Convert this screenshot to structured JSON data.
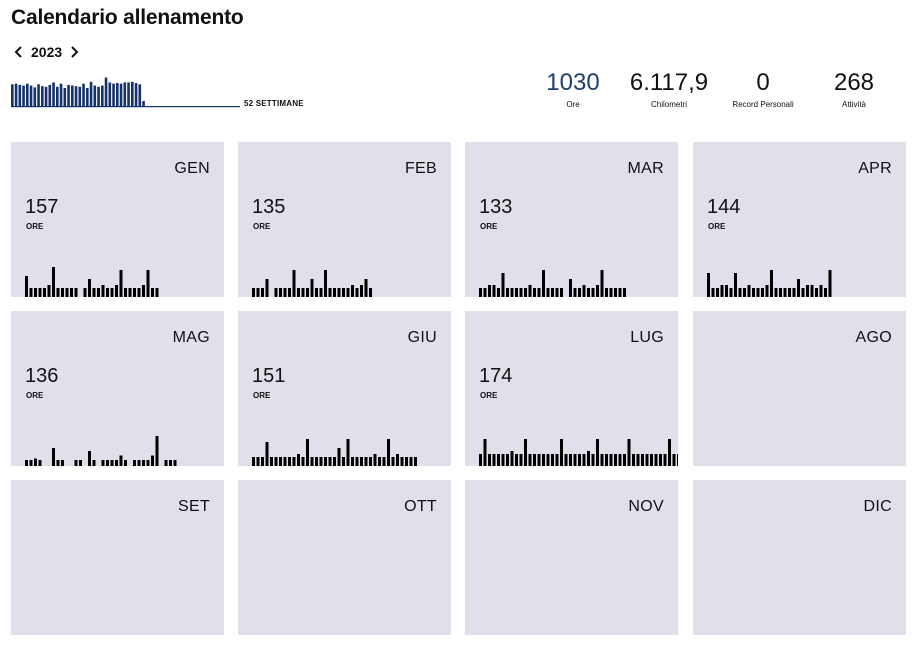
{
  "header": {
    "title": "Calendario allenamento",
    "year": "2023",
    "weeks_label": "52 SETTIMANE"
  },
  "icons": {
    "prev": "chevron-left-icon",
    "next": "chevron-right-icon"
  },
  "colors": {
    "accent": "#1e3f6e",
    "weekly_bar": "#15316a",
    "card_bg": "#e0e0ea",
    "bar": "#000000"
  },
  "weekly_bars": [
    0.7,
    0.72,
    0.68,
    0.66,
    0.72,
    0.66,
    0.6,
    0.7,
    0.64,
    0.62,
    0.68,
    0.76,
    0.62,
    0.72,
    0.58,
    0.68,
    0.66,
    0.64,
    0.62,
    0.72,
    0.58,
    0.78,
    0.66,
    0.62,
    0.66,
    0.92,
    0.76,
    0.72,
    0.74,
    0.72,
    0.76,
    0.76,
    0.78,
    0.74,
    0.7,
    0.16
  ],
  "stats": {
    "hours": {
      "value": "1030",
      "label": "Ore"
    },
    "km": {
      "value": "6.117,9",
      "label": "Chilometri"
    },
    "records": {
      "value": "0",
      "label": "Record Personali"
    },
    "activities": {
      "value": "268",
      "label": "Attività"
    }
  },
  "hours_unit": "ORE",
  "months": [
    {
      "name": "GEN",
      "hours": "157",
      "days": [
        0.7,
        0.3,
        0.3,
        0.3,
        0.3,
        0.4,
        1.0,
        0.3,
        0.3,
        0.3,
        0.3,
        0.3,
        0,
        0.3,
        0.6,
        0.3,
        0.3,
        0.4,
        0.3,
        0.3,
        0.4,
        0.9,
        0.3,
        0.3,
        0.3,
        0.3,
        0.4,
        0.9,
        0.3,
        0.3,
        0,
        0,
        0,
        0,
        0,
        0,
        0,
        0,
        0,
        0,
        0
      ]
    },
    {
      "name": "FEB",
      "hours": "135",
      "days": [
        0.3,
        0.3,
        0.3,
        0.6,
        0,
        0.3,
        0.3,
        0.3,
        0.3,
        0.9,
        0.3,
        0.3,
        0.3,
        0.6,
        0.3,
        0.3,
        0.9,
        0.3,
        0.3,
        0.3,
        0.3,
        0.3,
        0.4,
        0.3,
        0.4,
        0.6,
        0.3
      ]
    },
    {
      "name": "MAR",
      "hours": "133",
      "days": [
        0.3,
        0.3,
        0.4,
        0.4,
        0.3,
        0.8,
        0.3,
        0.3,
        0.3,
        0.3,
        0.3,
        0.4,
        0.3,
        0.3,
        0.9,
        0.3,
        0.3,
        0.3,
        0.3,
        0,
        0.6,
        0.3,
        0.3,
        0.4,
        0.3,
        0.3,
        0.4,
        0.9,
        0.3,
        0.3,
        0.3,
        0.3,
        0.3
      ]
    },
    {
      "name": "APR",
      "hours": "144",
      "days": [
        0.8,
        0.3,
        0.3,
        0.4,
        0.4,
        0.3,
        0.8,
        0.3,
        0.3,
        0.4,
        0.3,
        0.3,
        0.3,
        0.4,
        0.9,
        0.3,
        0.3,
        0.3,
        0.3,
        0.3,
        0.6,
        0.3,
        0.4,
        0.4,
        0.3,
        0.4,
        0.3,
        0.9
      ]
    },
    {
      "name": "MAG",
      "hours": "136",
      "days": [
        0.2,
        0.2,
        0.25,
        0.2,
        0,
        0,
        0.6,
        0.2,
        0.2,
        0,
        0,
        0.2,
        0.2,
        0,
        0.5,
        0.2,
        0,
        0.2,
        0.2,
        0.2,
        0.2,
        0.35,
        0.2,
        0,
        0.2,
        0.2,
        0.2,
        0.2,
        0.35,
        1.0,
        0,
        0.2,
        0.2,
        0.2
      ]
    },
    {
      "name": "GIU",
      "hours": "151",
      "days": [
        0.3,
        0.3,
        0.3,
        0.8,
        0.3,
        0.3,
        0.3,
        0.3,
        0.3,
        0.3,
        0.4,
        0.3,
        0.9,
        0.3,
        0.3,
        0.3,
        0.3,
        0.3,
        0.3,
        0.6,
        0.3,
        0.9,
        0.3,
        0.3,
        0.3,
        0.3,
        0.3,
        0.4,
        0.3,
        0.3,
        0.9,
        0.3,
        0.4,
        0.3,
        0.3,
        0.3,
        0.3
      ]
    },
    {
      "name": "LUG",
      "hours": "174",
      "days": [
        0.4,
        0.9,
        0.4,
        0.4,
        0.4,
        0.4,
        0.4,
        0.5,
        0.4,
        0.4,
        0.9,
        0.4,
        0.4,
        0.4,
        0.4,
        0.4,
        0.4,
        0.4,
        0.9,
        0.4,
        0.4,
        0.4,
        0.4,
        0.4,
        0.5,
        0.4,
        0.9,
        0.4,
        0.4,
        0.4,
        0.4,
        0.4,
        0.4,
        0.9,
        0.4,
        0.4,
        0.4,
        0.4,
        0.4,
        0.4,
        0.4,
        0.4,
        0.9,
        0.4,
        0.4
      ]
    },
    {
      "name": "AGO",
      "hours": "",
      "days": []
    },
    {
      "name": "SET",
      "hours": "",
      "days": []
    },
    {
      "name": "OTT",
      "hours": "",
      "days": []
    },
    {
      "name": "NOV",
      "hours": "",
      "days": []
    },
    {
      "name": "DIC",
      "hours": "",
      "days": []
    }
  ]
}
